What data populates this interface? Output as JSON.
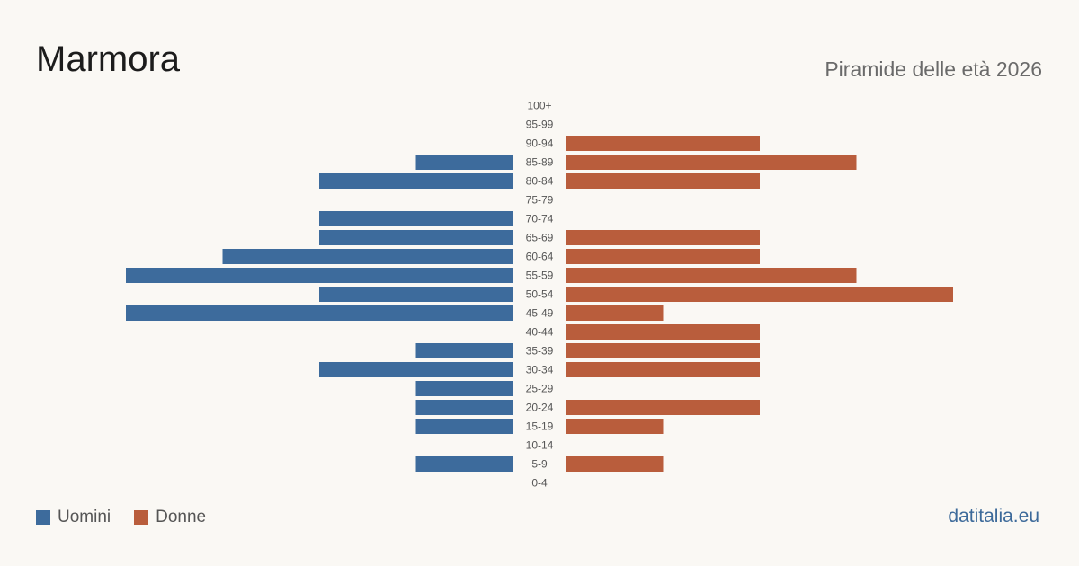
{
  "header": {
    "title": "Marmora",
    "subtitle": "Piramide delle età 2026"
  },
  "legend": {
    "men_label": "Uomini",
    "women_label": "Donne"
  },
  "source": "datitalia.eu",
  "colors": {
    "men": "#3d6b9c",
    "women": "#b95d3c"
  },
  "chart_data": {
    "type": "bar",
    "orientation": "horizontal-pyramid",
    "categories": [
      "100+",
      "95-99",
      "90-94",
      "85-89",
      "80-84",
      "75-79",
      "70-74",
      "65-69",
      "60-64",
      "55-59",
      "50-54",
      "45-49",
      "40-44",
      "35-39",
      "30-34",
      "25-29",
      "20-24",
      "15-19",
      "10-14",
      "5-9",
      "0-4"
    ],
    "series": [
      {
        "name": "Uomini",
        "side": "left",
        "values": [
          0,
          0,
          0,
          1,
          2,
          0,
          2,
          2,
          3,
          4,
          2,
          4,
          0,
          1,
          2,
          1,
          1,
          1,
          0,
          1,
          0
        ]
      },
      {
        "name": "Donne",
        "side": "right",
        "values": [
          0,
          0,
          2,
          3,
          2,
          0,
          0,
          2,
          2,
          3,
          4,
          1,
          2,
          2,
          2,
          0,
          2,
          1,
          0,
          1,
          0
        ]
      }
    ],
    "xlim": [
      0,
      4
    ],
    "grid": false,
    "legend_position": "bottom-left"
  }
}
